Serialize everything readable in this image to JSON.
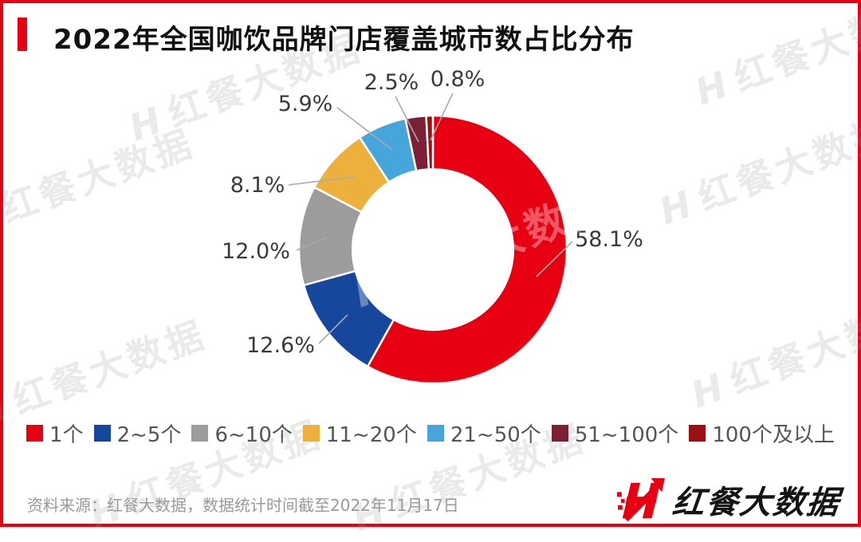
{
  "page": {
    "title": "2022年全国咖饮品牌门店覆盖城市数占比分布",
    "source_note": "资料来源：红餐大数据，数据统计时间截至2022年11月17日",
    "watermark_text": "红餐大数据",
    "brand": {
      "logo_h": "H",
      "logo_text": "红餐大数据"
    },
    "accent_color": "#e60012"
  },
  "chart_data": {
    "type": "pie",
    "subtype": "donut",
    "title": "2022年全国咖饮品牌门店覆盖城市数占比分布",
    "categories": [
      "1个",
      "2~5个",
      "6~10个",
      "11~20个",
      "21~50个",
      "51~100个",
      "100个及以上"
    ],
    "values": [
      58.1,
      12.6,
      12.0,
      8.1,
      5.9,
      2.5,
      0.8
    ],
    "labels": [
      "58.1%",
      "12.6%",
      "12.0%",
      "8.1%",
      "5.9%",
      "2.5%",
      "0.8%"
    ],
    "colors": [
      "#e60012",
      "#17479d",
      "#9c9c9d",
      "#eeb03c",
      "#46a5da",
      "#7b2035",
      "#9c1014"
    ],
    "start_angle_deg": 0,
    "direction": "clockwise",
    "inner_radius_ratio": 0.6,
    "slice_border_color": "#ffffff",
    "leader_line_color": "#a9a9a9",
    "legend_position": "bottom"
  }
}
